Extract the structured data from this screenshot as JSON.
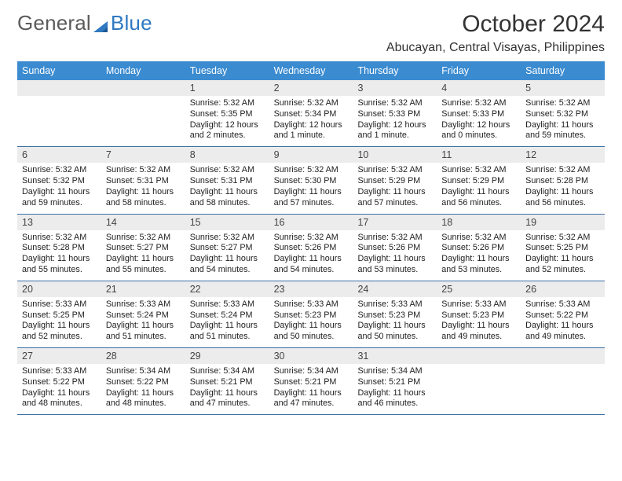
{
  "brand": {
    "part1": "General",
    "part2": "Blue"
  },
  "title": "October 2024",
  "location": "Abucayan, Central Visayas, Philippines",
  "colors": {
    "header_bg": "#3b8bd0",
    "header_text": "#ffffff",
    "daynum_bg": "#ececec",
    "week_border": "#3b6fa3",
    "brand_gray": "#5b5b5b",
    "brand_blue": "#2f79c2",
    "page_bg": "#ffffff"
  },
  "day_labels": [
    "Sunday",
    "Monday",
    "Tuesday",
    "Wednesday",
    "Thursday",
    "Friday",
    "Saturday"
  ],
  "weeks": [
    [
      null,
      null,
      {
        "n": "1",
        "sr": "Sunrise: 5:32 AM",
        "ss": "Sunset: 5:35 PM",
        "d1": "Daylight: 12 hours",
        "d2": "and 2 minutes."
      },
      {
        "n": "2",
        "sr": "Sunrise: 5:32 AM",
        "ss": "Sunset: 5:34 PM",
        "d1": "Daylight: 12 hours",
        "d2": "and 1 minute."
      },
      {
        "n": "3",
        "sr": "Sunrise: 5:32 AM",
        "ss": "Sunset: 5:33 PM",
        "d1": "Daylight: 12 hours",
        "d2": "and 1 minute."
      },
      {
        "n": "4",
        "sr": "Sunrise: 5:32 AM",
        "ss": "Sunset: 5:33 PM",
        "d1": "Daylight: 12 hours",
        "d2": "and 0 minutes."
      },
      {
        "n": "5",
        "sr": "Sunrise: 5:32 AM",
        "ss": "Sunset: 5:32 PM",
        "d1": "Daylight: 11 hours",
        "d2": "and 59 minutes."
      }
    ],
    [
      {
        "n": "6",
        "sr": "Sunrise: 5:32 AM",
        "ss": "Sunset: 5:32 PM",
        "d1": "Daylight: 11 hours",
        "d2": "and 59 minutes."
      },
      {
        "n": "7",
        "sr": "Sunrise: 5:32 AM",
        "ss": "Sunset: 5:31 PM",
        "d1": "Daylight: 11 hours",
        "d2": "and 58 minutes."
      },
      {
        "n": "8",
        "sr": "Sunrise: 5:32 AM",
        "ss": "Sunset: 5:31 PM",
        "d1": "Daylight: 11 hours",
        "d2": "and 58 minutes."
      },
      {
        "n": "9",
        "sr": "Sunrise: 5:32 AM",
        "ss": "Sunset: 5:30 PM",
        "d1": "Daylight: 11 hours",
        "d2": "and 57 minutes."
      },
      {
        "n": "10",
        "sr": "Sunrise: 5:32 AM",
        "ss": "Sunset: 5:29 PM",
        "d1": "Daylight: 11 hours",
        "d2": "and 57 minutes."
      },
      {
        "n": "11",
        "sr": "Sunrise: 5:32 AM",
        "ss": "Sunset: 5:29 PM",
        "d1": "Daylight: 11 hours",
        "d2": "and 56 minutes."
      },
      {
        "n": "12",
        "sr": "Sunrise: 5:32 AM",
        "ss": "Sunset: 5:28 PM",
        "d1": "Daylight: 11 hours",
        "d2": "and 56 minutes."
      }
    ],
    [
      {
        "n": "13",
        "sr": "Sunrise: 5:32 AM",
        "ss": "Sunset: 5:28 PM",
        "d1": "Daylight: 11 hours",
        "d2": "and 55 minutes."
      },
      {
        "n": "14",
        "sr": "Sunrise: 5:32 AM",
        "ss": "Sunset: 5:27 PM",
        "d1": "Daylight: 11 hours",
        "d2": "and 55 minutes."
      },
      {
        "n": "15",
        "sr": "Sunrise: 5:32 AM",
        "ss": "Sunset: 5:27 PM",
        "d1": "Daylight: 11 hours",
        "d2": "and 54 minutes."
      },
      {
        "n": "16",
        "sr": "Sunrise: 5:32 AM",
        "ss": "Sunset: 5:26 PM",
        "d1": "Daylight: 11 hours",
        "d2": "and 54 minutes."
      },
      {
        "n": "17",
        "sr": "Sunrise: 5:32 AM",
        "ss": "Sunset: 5:26 PM",
        "d1": "Daylight: 11 hours",
        "d2": "and 53 minutes."
      },
      {
        "n": "18",
        "sr": "Sunrise: 5:32 AM",
        "ss": "Sunset: 5:26 PM",
        "d1": "Daylight: 11 hours",
        "d2": "and 53 minutes."
      },
      {
        "n": "19",
        "sr": "Sunrise: 5:32 AM",
        "ss": "Sunset: 5:25 PM",
        "d1": "Daylight: 11 hours",
        "d2": "and 52 minutes."
      }
    ],
    [
      {
        "n": "20",
        "sr": "Sunrise: 5:33 AM",
        "ss": "Sunset: 5:25 PM",
        "d1": "Daylight: 11 hours",
        "d2": "and 52 minutes."
      },
      {
        "n": "21",
        "sr": "Sunrise: 5:33 AM",
        "ss": "Sunset: 5:24 PM",
        "d1": "Daylight: 11 hours",
        "d2": "and 51 minutes."
      },
      {
        "n": "22",
        "sr": "Sunrise: 5:33 AM",
        "ss": "Sunset: 5:24 PM",
        "d1": "Daylight: 11 hours",
        "d2": "and 51 minutes."
      },
      {
        "n": "23",
        "sr": "Sunrise: 5:33 AM",
        "ss": "Sunset: 5:23 PM",
        "d1": "Daylight: 11 hours",
        "d2": "and 50 minutes."
      },
      {
        "n": "24",
        "sr": "Sunrise: 5:33 AM",
        "ss": "Sunset: 5:23 PM",
        "d1": "Daylight: 11 hours",
        "d2": "and 50 minutes."
      },
      {
        "n": "25",
        "sr": "Sunrise: 5:33 AM",
        "ss": "Sunset: 5:23 PM",
        "d1": "Daylight: 11 hours",
        "d2": "and 49 minutes."
      },
      {
        "n": "26",
        "sr": "Sunrise: 5:33 AM",
        "ss": "Sunset: 5:22 PM",
        "d1": "Daylight: 11 hours",
        "d2": "and 49 minutes."
      }
    ],
    [
      {
        "n": "27",
        "sr": "Sunrise: 5:33 AM",
        "ss": "Sunset: 5:22 PM",
        "d1": "Daylight: 11 hours",
        "d2": "and 48 minutes."
      },
      {
        "n": "28",
        "sr": "Sunrise: 5:34 AM",
        "ss": "Sunset: 5:22 PM",
        "d1": "Daylight: 11 hours",
        "d2": "and 48 minutes."
      },
      {
        "n": "29",
        "sr": "Sunrise: 5:34 AM",
        "ss": "Sunset: 5:21 PM",
        "d1": "Daylight: 11 hours",
        "d2": "and 47 minutes."
      },
      {
        "n": "30",
        "sr": "Sunrise: 5:34 AM",
        "ss": "Sunset: 5:21 PM",
        "d1": "Daylight: 11 hours",
        "d2": "and 47 minutes."
      },
      {
        "n": "31",
        "sr": "Sunrise: 5:34 AM",
        "ss": "Sunset: 5:21 PM",
        "d1": "Daylight: 11 hours",
        "d2": "and 46 minutes."
      },
      null,
      null
    ]
  ]
}
